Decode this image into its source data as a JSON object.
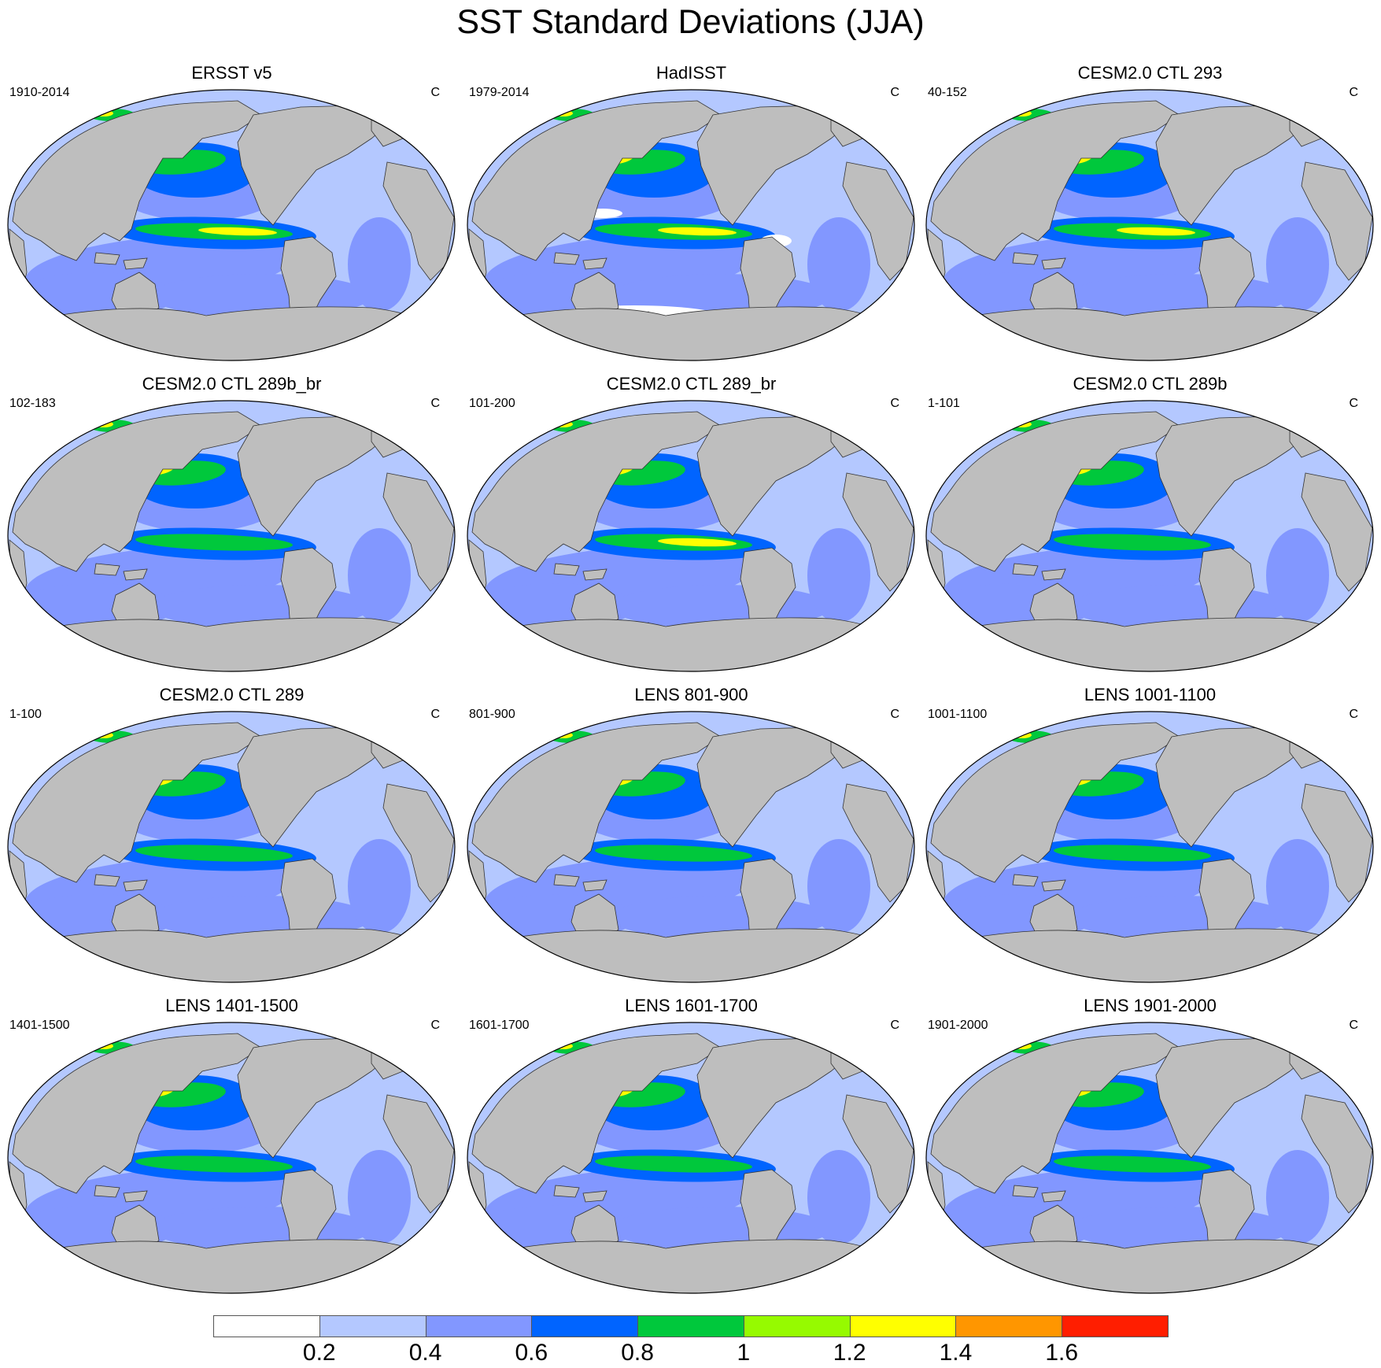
{
  "title": "SST Standard Deviations (JJA)",
  "panels": [
    {
      "title": "ERSST v5",
      "left": "1910-2014",
      "right": "C"
    },
    {
      "title": "HadISST",
      "left": "1979-2014",
      "right": "C"
    },
    {
      "title": "CESM2.0 CTL 293",
      "left": "40-152",
      "right": "C"
    },
    {
      "title": "CESM2.0 CTL 289b_br",
      "left": "102-183",
      "right": "C"
    },
    {
      "title": "CESM2.0 CTL 289_br",
      "left": "101-200",
      "right": "C"
    },
    {
      "title": "CESM2.0 CTL 289b",
      "left": "1-101",
      "right": "C"
    },
    {
      "title": "CESM2.0 CTL 289",
      "left": "1-100",
      "right": "C"
    },
    {
      "title": "LENS 801-900",
      "left": "801-900",
      "right": "C"
    },
    {
      "title": "LENS 1001-1100",
      "left": "1001-1100",
      "right": "C"
    },
    {
      "title": "LENS 1401-1500",
      "left": "1401-1500",
      "right": "C"
    },
    {
      "title": "LENS 1601-1700",
      "left": "1601-1700",
      "right": "C"
    },
    {
      "title": "LENS 1901-2000",
      "left": "1901-2000",
      "right": "C"
    }
  ],
  "colorbar": {
    "colors": [
      "#ffffff",
      "#b4c8ff",
      "#8297ff",
      "#0064ff",
      "#00c83c",
      "#96fa00",
      "#ffff00",
      "#ff9600",
      "#ff1e00"
    ],
    "labels": [
      "0.2",
      "0.4",
      "0.6",
      "0.8",
      "1",
      "1.2",
      "1.4",
      "1.6"
    ]
  },
  "colors": {
    "land": "#bebebe",
    "ocean_base": "#b4c8ff",
    "ocean_mid": "#8297ff",
    "high": "#0064ff",
    "green": "#00c83c",
    "lime": "#96fa00",
    "yellow": "#ffff00",
    "orange": "#ff9600",
    "red": "#ff1e00",
    "white": "#ffffff"
  }
}
